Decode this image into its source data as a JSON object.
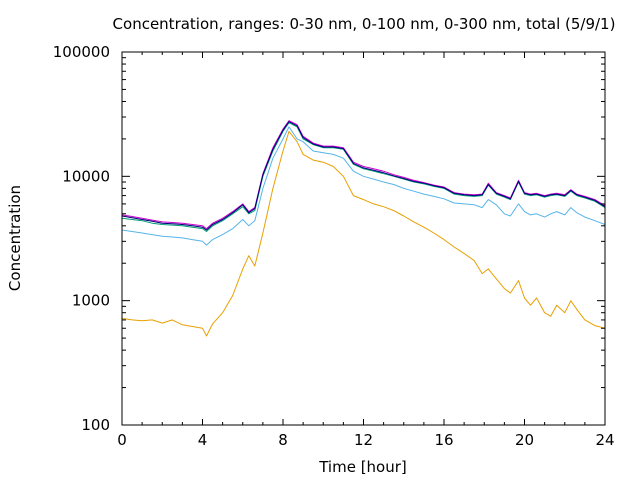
{
  "chart_data": {
    "type": "line",
    "title": "Concentration, ranges: 0-30 nm, 0-100 nm, 0-300 nm, total (5/9/1)",
    "xlabel": "Time [hour]",
    "ylabel": "Concentration",
    "xlim": [
      0,
      24
    ],
    "ylim": [
      100,
      100000
    ],
    "yscale": "log",
    "grid": false,
    "legend": "none",
    "x_ticks": [
      0,
      4,
      8,
      12,
      16,
      20,
      24
    ],
    "x_tick_labels": [
      "0",
      "4",
      "8",
      "12",
      "16",
      "20",
      "24"
    ],
    "y_ticks": [
      100,
      1000,
      10000,
      100000
    ],
    "y_tick_labels": [
      "100",
      "1000",
      "10000",
      "100000"
    ],
    "series": [
      {
        "color": "#e8a000",
        "x": [
          0,
          0.5,
          1,
          1.5,
          2,
          2.5,
          3,
          3.5,
          4,
          4.2,
          4.5,
          5,
          5.5,
          6,
          6.3,
          6.6,
          7,
          7.5,
          8,
          8.3,
          8.7,
          9,
          9.5,
          10,
          10.5,
          11,
          11.5,
          12,
          12.5,
          13,
          13.5,
          14,
          14.5,
          15,
          15.5,
          16,
          16.5,
          17,
          17.5,
          17.9,
          18.2,
          18.6,
          19,
          19.3,
          19.7,
          20,
          20.3,
          20.6,
          21,
          21.3,
          21.6,
          22,
          22.3,
          22.6,
          23,
          23.5,
          24
        ],
        "y": [
          720,
          700,
          690,
          700,
          660,
          700,
          640,
          620,
          600,
          520,
          650,
          800,
          1100,
          1800,
          2300,
          1900,
          3500,
          8000,
          16000,
          23000,
          19000,
          15000,
          13500,
          13000,
          12000,
          10000,
          7000,
          6500,
          6000,
          5700,
          5300,
          4800,
          4300,
          3900,
          3500,
          3100,
          2700,
          2400,
          2100,
          1650,
          1800,
          1500,
          1250,
          1150,
          1450,
          1050,
          920,
          1050,
          800,
          750,
          920,
          800,
          1000,
          850,
          700,
          630,
          600
        ]
      },
      {
        "color": "#56b4e9",
        "x": [
          0,
          0.5,
          1,
          1.5,
          2,
          2.5,
          3,
          3.5,
          4,
          4.2,
          4.5,
          5,
          5.5,
          6,
          6.3,
          6.6,
          7,
          7.5,
          8,
          8.3,
          8.7,
          9,
          9.5,
          10,
          10.5,
          11,
          11.5,
          12,
          12.5,
          13,
          13.5,
          14,
          14.5,
          15,
          15.5,
          16,
          16.5,
          17,
          17.5,
          17.9,
          18.2,
          18.6,
          19,
          19.3,
          19.7,
          20,
          20.3,
          20.6,
          21,
          21.3,
          21.6,
          22,
          22.3,
          22.6,
          23,
          23.5,
          24
        ],
        "y": [
          3700,
          3600,
          3500,
          3400,
          3300,
          3250,
          3200,
          3100,
          3000,
          2800,
          3100,
          3400,
          3800,
          4500,
          4000,
          4400,
          8000,
          14000,
          20000,
          25000,
          20000,
          19000,
          16000,
          15500,
          15000,
          14000,
          11000,
          10000,
          9500,
          9000,
          8600,
          8000,
          7600,
          7200,
          6900,
          6600,
          6100,
          6000,
          5900,
          5600,
          6500,
          5900,
          5000,
          4800,
          6000,
          5200,
          4900,
          5000,
          4700,
          5000,
          5200,
          4900,
          5600,
          5100,
          4700,
          4400,
          4100
        ]
      },
      {
        "color": "#009e73",
        "x": [
          0,
          0.5,
          1,
          1.5,
          2,
          2.5,
          3,
          3.5,
          4,
          4.2,
          4.5,
          5,
          5.5,
          6,
          6.3,
          6.6,
          7,
          7.5,
          8,
          8.3,
          8.7,
          9,
          9.5,
          10,
          10.5,
          11,
          11.5,
          12,
          12.5,
          13,
          13.5,
          14,
          14.5,
          15,
          15.5,
          16,
          16.5,
          17,
          17.5,
          17.9,
          18.2,
          18.6,
          19,
          19.3,
          19.7,
          20,
          20.3,
          20.6,
          21,
          21.3,
          21.6,
          22,
          22.3,
          22.6,
          23,
          23.5,
          24
        ],
        "y": [
          4600,
          4500,
          4400,
          4200,
          4100,
          4050,
          4000,
          3900,
          3800,
          3600,
          4000,
          4400,
          5000,
          5700,
          5000,
          5300,
          10000,
          16000,
          23000,
          27000,
          25000,
          20000,
          18000,
          17000,
          17000,
          16500,
          12500,
          11500,
          11000,
          10500,
          10000,
          9500,
          9000,
          8700,
          8300,
          8000,
          7200,
          7000,
          6900,
          7000,
          8500,
          7200,
          6800,
          6500,
          9000,
          7200,
          7000,
          7100,
          6800,
          7000,
          7100,
          6900,
          7600,
          7000,
          6700,
          6300,
          5600
        ]
      },
      {
        "color": "#cc00cc",
        "x": [
          0,
          0.5,
          1,
          1.5,
          2,
          2.5,
          3,
          3.5,
          4,
          4.2,
          4.5,
          5,
          5.5,
          6,
          6.3,
          6.6,
          7,
          7.5,
          8,
          8.3,
          8.7,
          9,
          9.5,
          10,
          10.5,
          11,
          11.5,
          12,
          12.5,
          13,
          13.5,
          14,
          14.5,
          15,
          15.5,
          16,
          16.5,
          17,
          17.5,
          17.9,
          18.2,
          18.6,
          19,
          19.3,
          19.7,
          20,
          20.3,
          20.6,
          21,
          21.3,
          21.6,
          22,
          22.3,
          22.6,
          23,
          23.5,
          24
        ],
        "y": [
          4900,
          4750,
          4600,
          4450,
          4300,
          4250,
          4200,
          4100,
          4000,
          3800,
          4200,
          4600,
          5200,
          6000,
          5200,
          5600,
          10500,
          17000,
          24000,
          28000,
          26000,
          21000,
          18500,
          17500,
          17500,
          17000,
          13000,
          12000,
          11500,
          11000,
          10300,
          9800,
          9300,
          8900,
          8500,
          8200,
          7400,
          7200,
          7100,
          7200,
          8800,
          7400,
          7000,
          6700,
          9300,
          7400,
          7200,
          7300,
          7000,
          7200,
          7300,
          7100,
          7800,
          7200,
          6900,
          6500,
          5800
        ]
      },
      {
        "color": "#000080",
        "x": [
          0,
          0.5,
          1,
          1.5,
          2,
          2.5,
          3,
          3.5,
          4,
          4.2,
          4.5,
          5,
          5.5,
          6,
          6.3,
          6.6,
          7,
          7.5,
          8,
          8.3,
          8.7,
          9,
          9.5,
          10,
          10.5,
          11,
          11.5,
          12,
          12.5,
          13,
          13.5,
          14,
          14.5,
          15,
          15.5,
          16,
          16.5,
          17,
          17.5,
          17.9,
          18.2,
          18.6,
          19,
          19.3,
          19.7,
          20,
          20.3,
          20.6,
          21,
          21.3,
          21.6,
          22,
          22.3,
          22.6,
          23,
          23.5,
          24
        ],
        "y": [
          4800,
          4650,
          4500,
          4350,
          4200,
          4150,
          4100,
          4000,
          3900,
          3700,
          4100,
          4500,
          5100,
          5900,
          5100,
          5500,
          10300,
          16500,
          23500,
          27500,
          25500,
          20500,
          18200,
          17200,
          17200,
          16700,
          12700,
          11700,
          11200,
          10700,
          10100,
          9600,
          9100,
          8800,
          8400,
          8100,
          7300,
          7100,
          7000,
          7100,
          8600,
          7300,
          6900,
          6600,
          9100,
          7300,
          7100,
          7200,
          6900,
          7100,
          7200,
          7000,
          7700,
          7100,
          6800,
          6400,
          5700
        ]
      }
    ]
  }
}
